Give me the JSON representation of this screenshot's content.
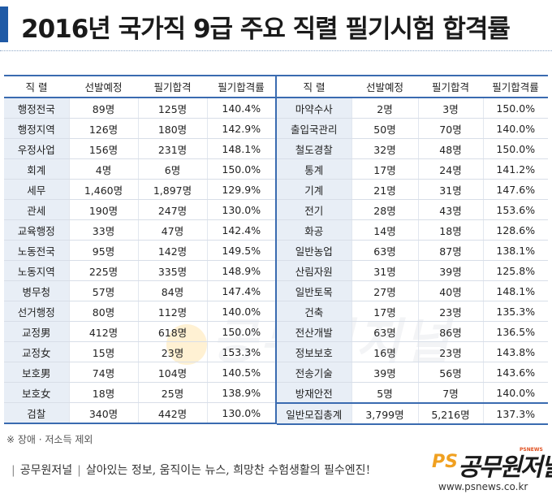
{
  "header": {
    "title": "2016년 국가직 9급 주요 직렬 필기시험 합격률"
  },
  "table": {
    "columns": [
      "직 렬",
      "선발예정",
      "필기합격",
      "필기합격률"
    ],
    "left_rows": [
      [
        "행정전국",
        "89명",
        "125명",
        "140.4%"
      ],
      [
        "행정지역",
        "126명",
        "180명",
        "142.9%"
      ],
      [
        "우정사업",
        "156명",
        "231명",
        "148.1%"
      ],
      [
        "회계",
        "4명",
        "6명",
        "150.0%"
      ],
      [
        "세무",
        "1,460명",
        "1,897명",
        "129.9%"
      ],
      [
        "관세",
        "190명",
        "247명",
        "130.0%"
      ],
      [
        "교육행정",
        "33명",
        "47명",
        "142.4%"
      ],
      [
        "노동전국",
        "95명",
        "142명",
        "149.5%"
      ],
      [
        "노동지역",
        "225명",
        "335명",
        "148.9%"
      ],
      [
        "병무청",
        "57명",
        "84명",
        "147.4%"
      ],
      [
        "선거행정",
        "80명",
        "112명",
        "140.0%"
      ],
      [
        "교정男",
        "412명",
        "618명",
        "150.0%"
      ],
      [
        "교정女",
        "15명",
        "23명",
        "153.3%"
      ],
      [
        "보호男",
        "74명",
        "104명",
        "140.5%"
      ],
      [
        "보호女",
        "18명",
        "25명",
        "138.9%"
      ],
      [
        "검찰",
        "340명",
        "442명",
        "130.0%"
      ]
    ],
    "right_rows": [
      [
        "마약수사",
        "2명",
        "3명",
        "150.0%"
      ],
      [
        "출입국관리",
        "50명",
        "70명",
        "140.0%"
      ],
      [
        "철도경찰",
        "32명",
        "48명",
        "150.0%"
      ],
      [
        "통계",
        "17명",
        "24명",
        "141.2%"
      ],
      [
        "기계",
        "21명",
        "31명",
        "147.6%"
      ],
      [
        "전기",
        "28명",
        "43명",
        "153.6%"
      ],
      [
        "화공",
        "14명",
        "18명",
        "128.6%"
      ],
      [
        "일반농업",
        "63명",
        "87명",
        "138.1%"
      ],
      [
        "산림자원",
        "31명",
        "39명",
        "125.8%"
      ],
      [
        "일반토목",
        "27명",
        "40명",
        "148.1%"
      ],
      [
        "건축",
        "17명",
        "23명",
        "135.3%"
      ],
      [
        "전산개발",
        "63명",
        "86명",
        "136.5%"
      ],
      [
        "정보보호",
        "16명",
        "23명",
        "143.8%"
      ],
      [
        "전송기술",
        "39명",
        "56명",
        "143.6%"
      ],
      [
        "방재안전",
        "5명",
        "7명",
        "140.0%"
      ],
      [
        "일반모집총계",
        "3,799명",
        "5,216명",
        "137.3%"
      ]
    ]
  },
  "note": "※ 장애 · 저소득 제외",
  "watermark": "공무원저널",
  "footer": {
    "brand": "공무원저널",
    "slogan": "살아있는 정보, 움직이는 뉴스, 희망찬 수험생활의 필수엔진!"
  },
  "logo": {
    "ps": "PS",
    "name": "공무원저널",
    "tag": "PSNEWS",
    "url": "www.psnews.co.kr"
  },
  "colors": {
    "accent": "#1f5aa6",
    "table_rule": "#3a6bb0",
    "name_cell_bg": "#e8eef6",
    "logo_orange": "#f0a020"
  }
}
